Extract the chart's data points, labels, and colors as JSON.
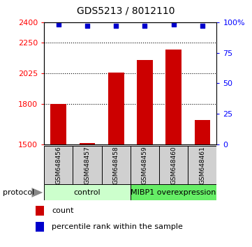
{
  "title": "GDS5213 / 8012110",
  "samples": [
    "GSM648456",
    "GSM648457",
    "GSM648458",
    "GSM648459",
    "GSM648460",
    "GSM648461"
  ],
  "bar_values": [
    1800,
    1510,
    2030,
    2120,
    2200,
    1680
  ],
  "percentile_values": [
    98,
    97,
    97,
    97,
    98,
    97
  ],
  "bar_color": "#cc0000",
  "dot_color": "#0000cc",
  "ylim_left": [
    1500,
    2400
  ],
  "ylim_right": [
    0,
    100
  ],
  "yticks_left": [
    1500,
    1800,
    2025,
    2250,
    2400
  ],
  "yticks_right": [
    0,
    25,
    50,
    75,
    100
  ],
  "grid_ticks": [
    1800,
    2025,
    2250
  ],
  "protocol_groups": [
    {
      "label": "control",
      "start": 0,
      "end": 3,
      "color": "#ccffcc"
    },
    {
      "label": "MIBP1 overexpression",
      "start": 3,
      "end": 6,
      "color": "#66ee66"
    }
  ],
  "background_color": "#ffffff",
  "bar_width": 0.55,
  "title_fontsize": 10,
  "tick_fontsize": 8,
  "sample_fontsize": 6.5,
  "legend_fontsize": 8,
  "prot_fontsize": 8,
  "box_facecolor": "#d0d0d0"
}
